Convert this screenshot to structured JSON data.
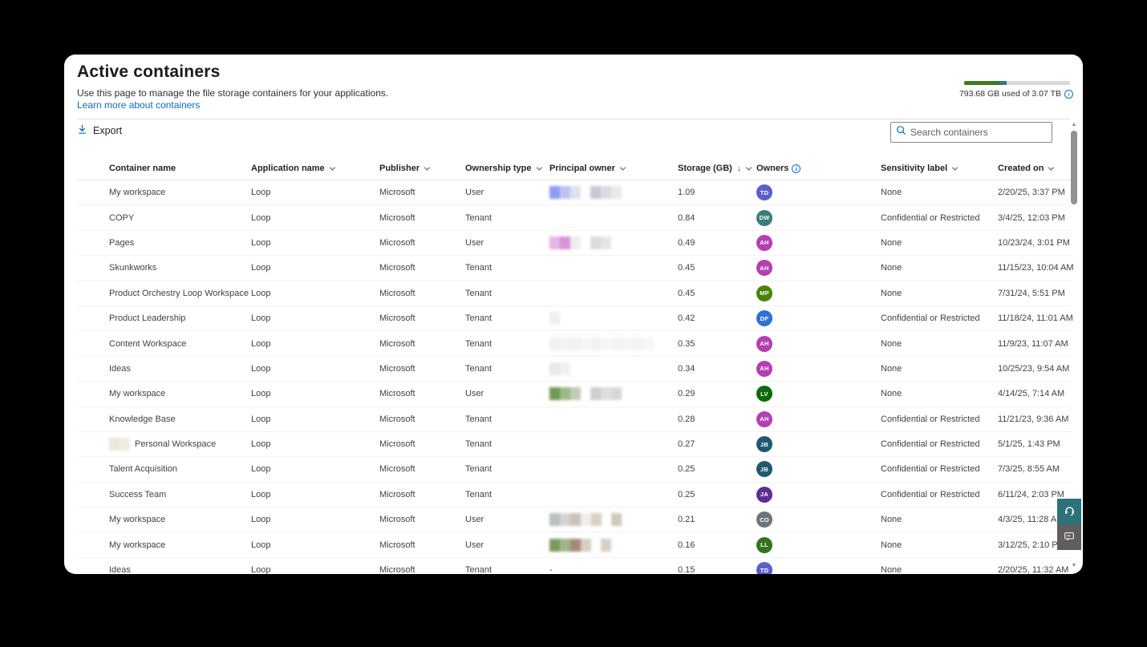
{
  "page": {
    "title": "Active containers",
    "description": "Use this page to manage the file storage containers for your applications.",
    "learn_more": "Learn more about containers"
  },
  "storage_usage": {
    "label": "793.68 GB used of 3.07 TB",
    "used_pct": 33,
    "secondary_pct": 7,
    "colors": {
      "primary": "#3e7b1f",
      "secondary": "#35797b",
      "track": "#d9d9d9"
    }
  },
  "toolbar": {
    "export_label": "Export",
    "search_placeholder": "Search containers"
  },
  "table": {
    "columns": [
      {
        "label": "Container name"
      },
      {
        "label": "Application name",
        "sortable": true
      },
      {
        "label": "Publisher",
        "sortable": true
      },
      {
        "label": "Ownership type",
        "sortable": true
      },
      {
        "label": "Principal owner",
        "sortable": true
      },
      {
        "label": "Storage (GB)",
        "sortable": true,
        "sorted": "desc"
      },
      {
        "label": "Owners",
        "info": true
      },
      {
        "label": "Sensitivity label",
        "sortable": true
      },
      {
        "label": "Created on",
        "sortable": true
      }
    ],
    "rows": [
      {
        "name": "My workspace",
        "app": "Loop",
        "publisher": "Microsoft",
        "ownership": "User",
        "owner_redact": [
          "#8e9df0",
          "#bcc3f4",
          "#e0e1ee",
          "gap",
          "#c6c9d2",
          "#d9dbe0",
          "#e9eaee"
        ],
        "storage": "1.09",
        "avatar": {
          "initials": "TD",
          "color": "#5b5fc7"
        },
        "sensitivity": "None",
        "created": "2/20/25, 3:37 PM"
      },
      {
        "name": "COPY",
        "app": "Loop",
        "publisher": "Microsoft",
        "ownership": "Tenant",
        "storage": "0.84",
        "avatar": {
          "initials": "DW",
          "color": "#3a7d7c"
        },
        "sensitivity": "Confidential or Restricted",
        "created": "3/4/25, 12:03 PM"
      },
      {
        "name": "Pages",
        "app": "Loop",
        "publisher": "Microsoft",
        "ownership": "User",
        "owner_redact": [
          "#e7b4e4",
          "#d892d6",
          "#eeeef0",
          "gap",
          "#dcdcdc",
          "#e6e6e6"
        ],
        "storage": "0.49",
        "avatar": {
          "initials": "AH",
          "color": "#b53fb0"
        },
        "sensitivity": "None",
        "created": "10/23/24, 3:01 PM"
      },
      {
        "name": "Skunkworks",
        "app": "Loop",
        "publisher": "Microsoft",
        "ownership": "Tenant",
        "storage": "0.45",
        "avatar": {
          "initials": "AH",
          "color": "#b53fb0"
        },
        "sensitivity": "None",
        "created": "11/15/23, 10:04 AM"
      },
      {
        "name": "Product Orchestry Loop Workspace",
        "app": "Loop",
        "publisher": "Microsoft",
        "ownership": "Tenant",
        "storage": "0.45",
        "avatar": {
          "initials": "MP",
          "color": "#498205"
        },
        "sensitivity": "None",
        "created": "7/31/24, 5:51 PM"
      },
      {
        "name": "Product Leadership",
        "app": "Loop",
        "publisher": "Microsoft",
        "ownership": "Tenant",
        "owner_redact": [
          "#efefed"
        ],
        "storage": "0.42",
        "avatar": {
          "initials": "DF",
          "color": "#2f72d3"
        },
        "sensitivity": "Confidential or Restricted",
        "created": "11/18/24, 11:01 AM"
      },
      {
        "name": "Content Workspace",
        "app": "Loop",
        "publisher": "Microsoft",
        "ownership": "Tenant",
        "owner_redact": [
          "#f1f1ef",
          "#f4f4f2",
          "#f1f1ef",
          "#f5f5f3",
          "#f2f2f0",
          "#f6f6f4",
          "#f3f3f1",
          "#f6f6f4",
          "#f3f3f1",
          "#f7f7f5"
        ],
        "storage": "0.35",
        "avatar": {
          "initials": "AH",
          "color": "#b53fb0"
        },
        "sensitivity": "None",
        "created": "11/9/23, 11:07 AM"
      },
      {
        "name": "Ideas",
        "app": "Loop",
        "publisher": "Microsoft",
        "ownership": "Tenant",
        "owner_redact": [
          "#e8e8e6",
          "#f0f0ee"
        ],
        "storage": "0.34",
        "avatar": {
          "initials": "AH",
          "color": "#b53fb0"
        },
        "sensitivity": "None",
        "created": "10/25/23, 9:54 AM"
      },
      {
        "name": "My workspace",
        "app": "Loop",
        "publisher": "Microsoft",
        "ownership": "User",
        "owner_redact": [
          "#6f9855",
          "#9cb985",
          "#c3cab8",
          "gap",
          "#cfcfcf",
          "#dfdfdf",
          "#d6d6d6"
        ],
        "storage": "0.29",
        "avatar": {
          "initials": "LV",
          "color": "#0b6a0b"
        },
        "sensitivity": "None",
        "created": "4/14/25, 7:14 AM"
      },
      {
        "name": "Knowledge Base",
        "app": "Loop",
        "publisher": "Microsoft",
        "ownership": "Tenant",
        "storage": "0.28",
        "avatar": {
          "initials": "AH",
          "color": "#b53fb0"
        },
        "sensitivity": "Confidential or Restricted",
        "created": "11/21/23, 9:36 AM"
      },
      {
        "name": "Personal Workspace",
        "name_prefix_redact": [
          "#eae7dc",
          "#efece3"
        ],
        "app": "Loop",
        "publisher": "Microsoft",
        "ownership": "Tenant",
        "storage": "0.27",
        "avatar": {
          "initials": "JB",
          "color": "#20596e"
        },
        "sensitivity": "Confidential or Restricted",
        "created": "5/1/25, 1:43 PM"
      },
      {
        "name": "Talent Acquisition",
        "app": "Loop",
        "publisher": "Microsoft",
        "ownership": "Tenant",
        "storage": "0.25",
        "avatar": {
          "initials": "JB",
          "color": "#20596e"
        },
        "sensitivity": "Confidential or Restricted",
        "created": "7/3/25, 8:55 AM"
      },
      {
        "name": "Success Team",
        "app": "Loop",
        "publisher": "Microsoft",
        "ownership": "Tenant",
        "storage": "0.25",
        "avatar": {
          "initials": "JA",
          "color": "#5c2e91"
        },
        "sensitivity": "Confidential or Restricted",
        "created": "6/11/24, 2:03 PM"
      },
      {
        "name": "My workspace",
        "app": "Loop",
        "publisher": "Microsoft",
        "ownership": "User",
        "owner_redact": [
          "#b9c0c0",
          "#d3d3cf",
          "#c9c3b9",
          "#efefeb",
          "#d8d1c4",
          "gap",
          "#cfc9bd"
        ],
        "storage": "0.21",
        "avatar": {
          "initials": "CO",
          "color": "#6d7578"
        },
        "sensitivity": "None",
        "created": "4/3/25, 11:28 AM"
      },
      {
        "name": "My workspace",
        "app": "Loop",
        "publisher": "Microsoft",
        "ownership": "User",
        "owner_redact": [
          "#7a9a5e",
          "#9db688",
          "#a58a78",
          "#d6cec2",
          "gap",
          "#d8cfc3"
        ],
        "storage": "0.16",
        "avatar": {
          "initials": "LL",
          "color": "#35721d"
        },
        "sensitivity": "None",
        "created": "3/12/25, 2:10 PM"
      },
      {
        "name": "Ideas",
        "app": "Loop",
        "publisher": "Microsoft",
        "ownership": "Tenant",
        "owner_text": "-",
        "storage": "0.15",
        "avatar": {
          "initials": "TD",
          "color": "#5b5fc7"
        },
        "sensitivity": "None",
        "created": "2/20/25, 11:32 AM"
      }
    ]
  },
  "side_buttons": {
    "help_color": "#2b7378",
    "feedback_color": "#5f5d5d"
  }
}
